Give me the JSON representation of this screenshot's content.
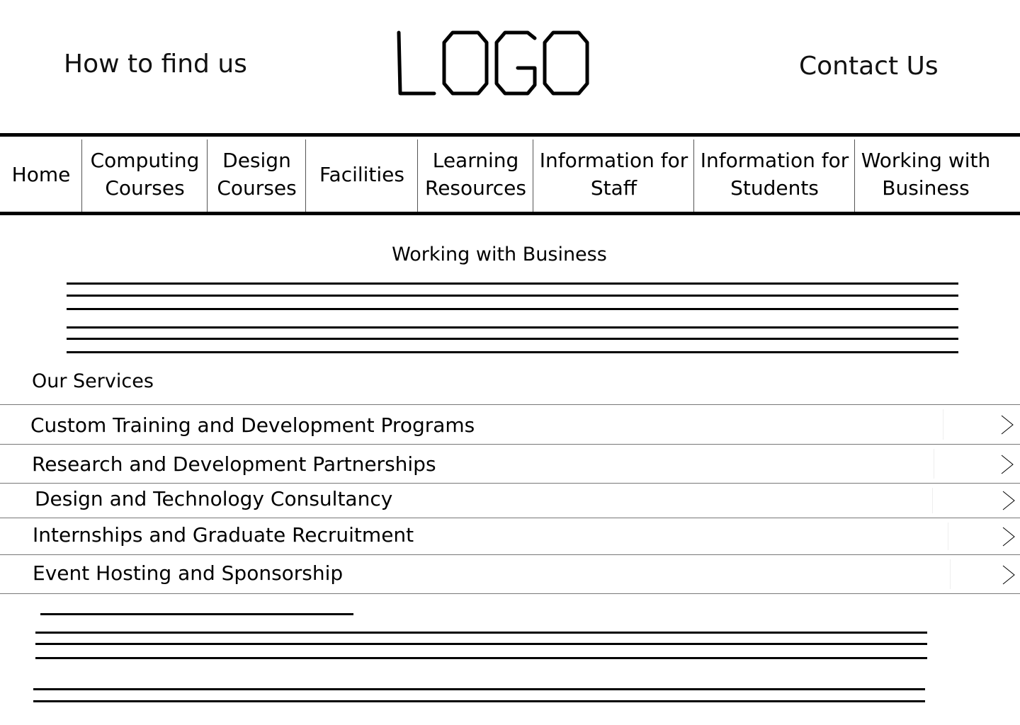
{
  "header": {
    "find_us": "How to find us",
    "logo_text": "LOGO",
    "contact_us": "Contact Us"
  },
  "nav": {
    "items": [
      {
        "label": "Home"
      },
      {
        "label": "Computing\nCourses"
      },
      {
        "label": "Design\nCourses"
      },
      {
        "label": "Facilities"
      },
      {
        "label": "Learning\nResources"
      },
      {
        "label": "Information for\nStaff"
      },
      {
        "label": "Information for\nStudents"
      },
      {
        "label": "Working with\nBusiness"
      }
    ]
  },
  "main": {
    "title": "Working with Business",
    "services_heading": "Our Services",
    "services": [
      {
        "label": "Custom Training and Development Programs",
        "icon": "chevron-right-icon"
      },
      {
        "label": "Research and Development Partnerships",
        "icon": "chevron-right-icon"
      },
      {
        "label": "Design and Technology Consultancy",
        "icon": "chevron-right-icon"
      },
      {
        "label": "Internships and Graduate Recruitment",
        "icon": "chevron-right-icon"
      },
      {
        "label": "Event Hosting and Sponsorship",
        "icon": "chevron-right-icon"
      }
    ]
  }
}
